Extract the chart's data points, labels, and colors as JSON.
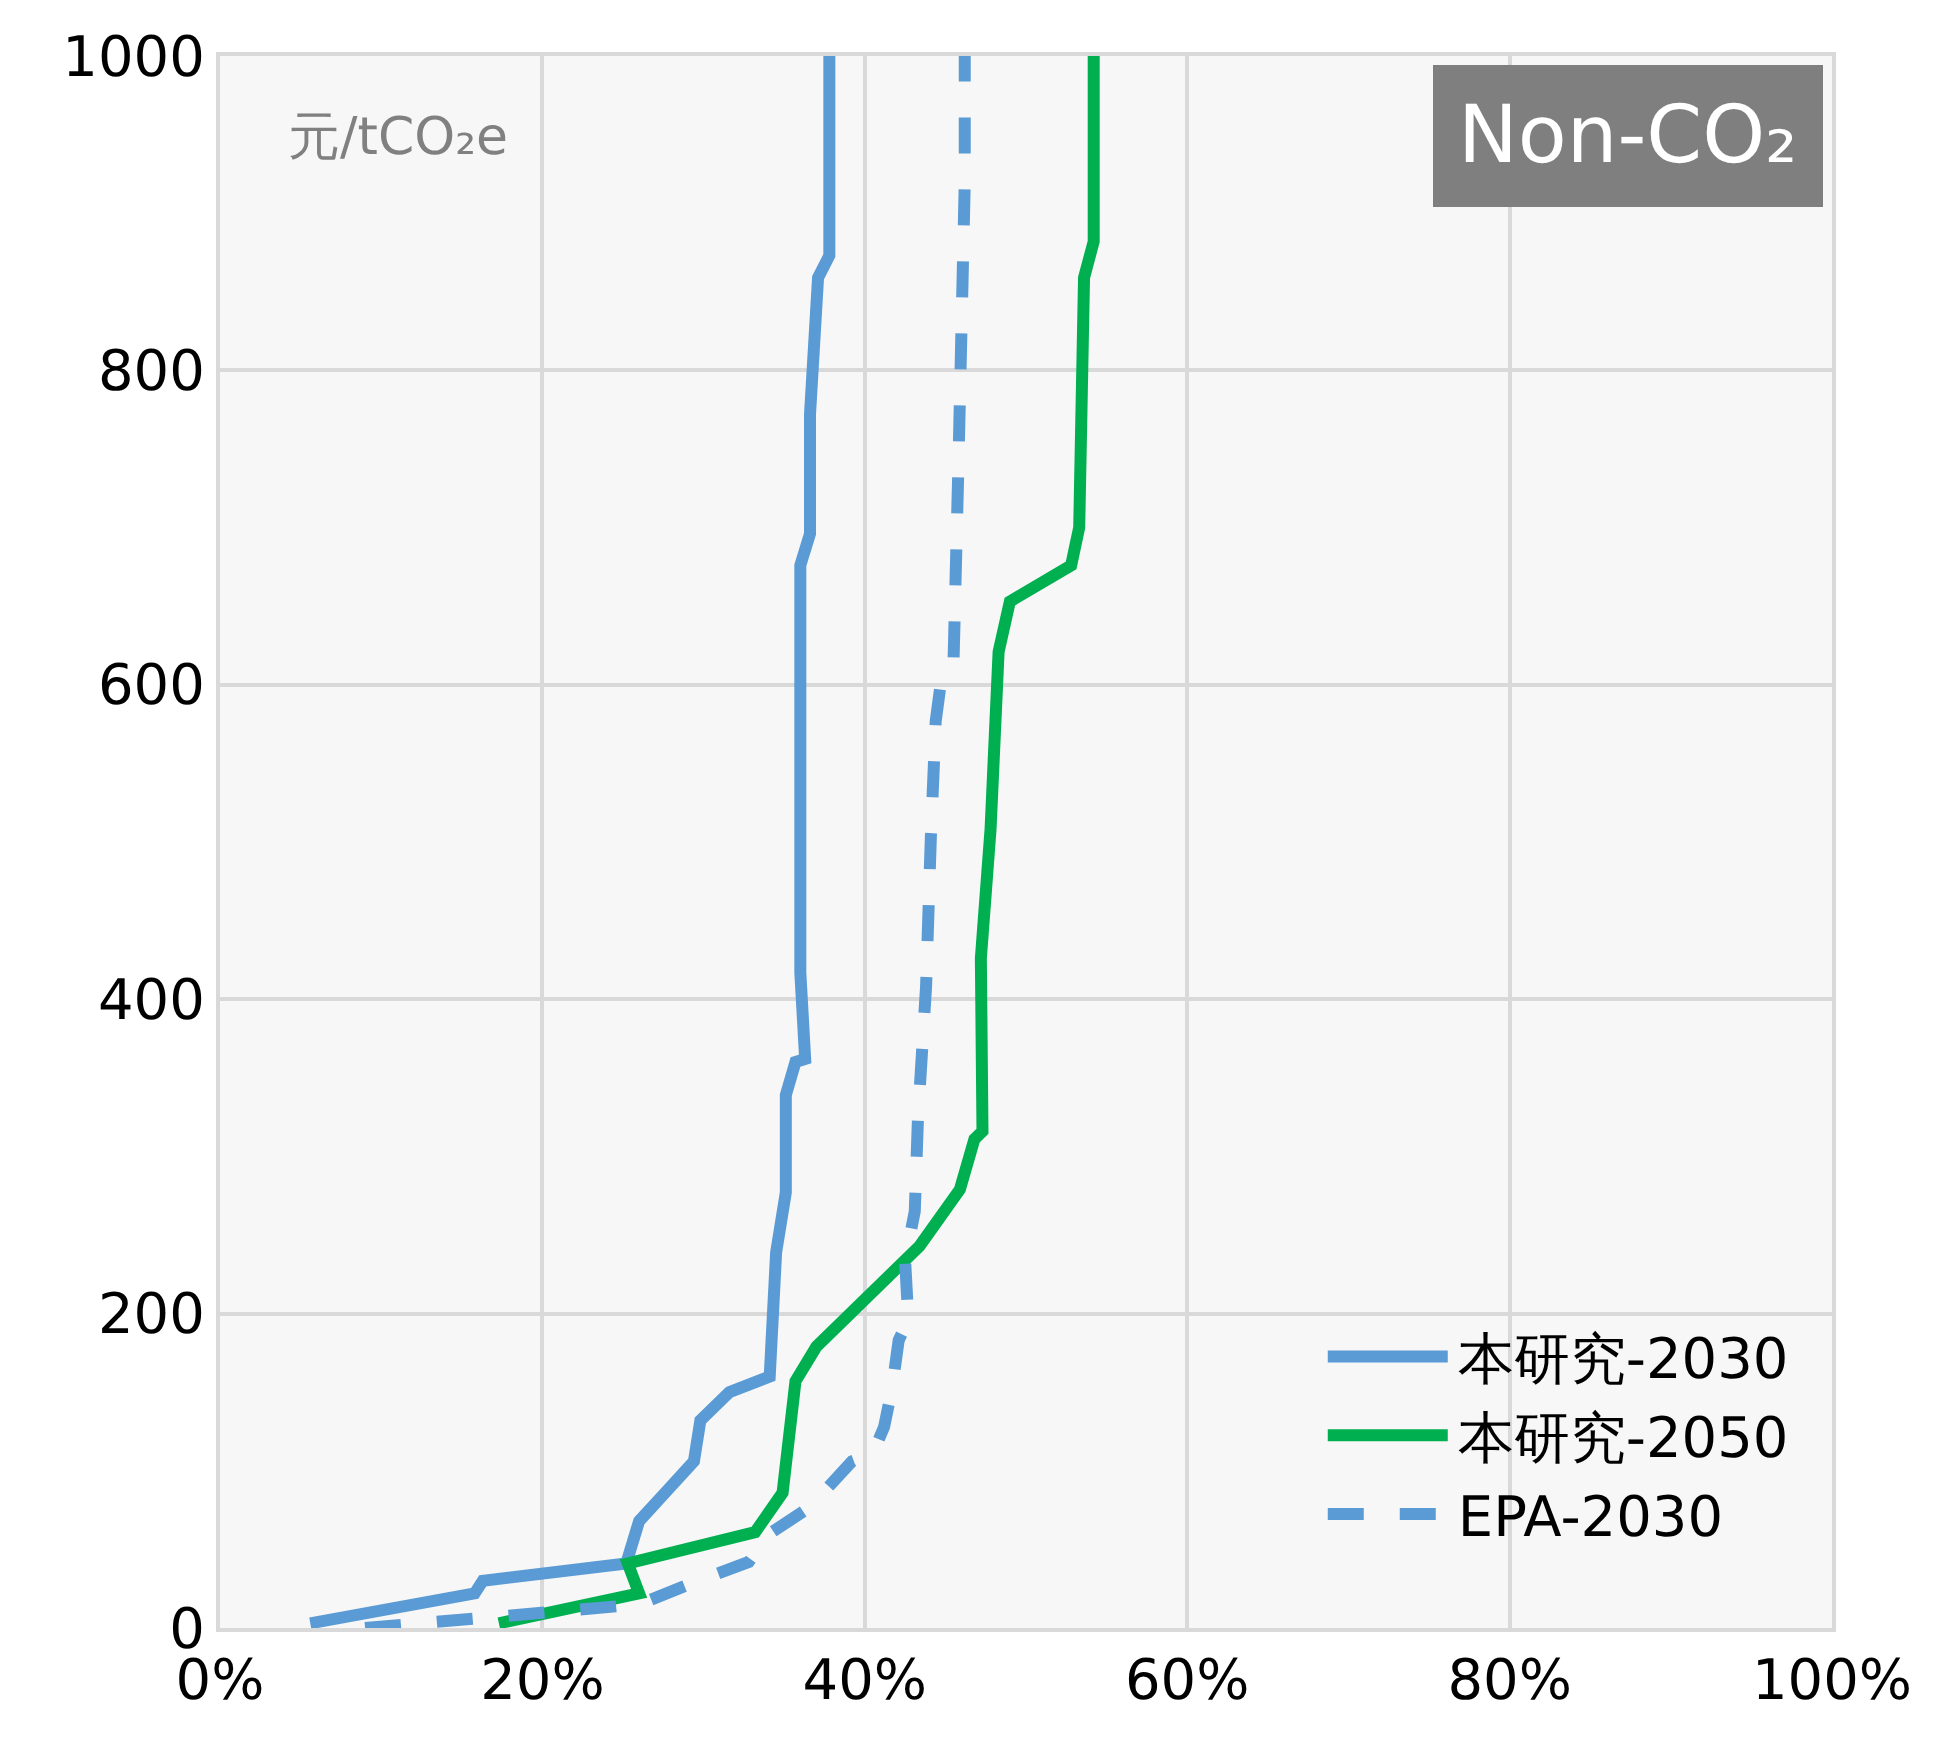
{
  "chart_data": {
    "type": "line",
    "annotations": [
      "元/tCO₂e",
      "Non-CO₂"
    ],
    "xlim": [
      0,
      100
    ],
    "xticks": [
      {
        "value": 0,
        "label": "0%"
      },
      {
        "value": 20,
        "label": "20%"
      },
      {
        "value": 40,
        "label": "40%"
      },
      {
        "value": 60,
        "label": "60%"
      },
      {
        "value": 80,
        "label": "80%"
      },
      {
        "value": 100,
        "label": "100%"
      }
    ],
    "ylim": [
      0,
      1000
    ],
    "yticks": [
      0,
      200,
      400,
      600,
      800,
      1000
    ],
    "grid": true,
    "legend": "bottom right",
    "marker": "none",
    "series": [
      {
        "name": "本研究-2030",
        "color": "#5b9bd5",
        "line_style": "solid",
        "x": [
          5.6,
          15.8,
          16.3,
          25.2,
          26,
          27.7,
          29.4,
          29.8,
          31.6,
          34.1,
          34.5,
          35.1,
          35.1,
          35.7,
          36.3,
          36,
          36,
          36.6,
          36.6,
          37.1,
          37.8,
          37.8
        ],
        "values": [
          3,
          22,
          30,
          41,
          68,
          87,
          106,
          132,
          150,
          160,
          239,
          277,
          339,
          360,
          362,
          417,
          676,
          696,
          772,
          859,
          873,
          1000
        ]
      },
      {
        "name": "本研究-2050",
        "color": "#00b050",
        "line_style": "solid",
        "x": [
          17.3,
          26,
          25.3,
          33.2,
          34.9,
          35.7,
          37,
          43.4,
          45.9,
          46.8,
          47.3,
          47.2,
          47.8,
          48.3,
          49,
          52.8,
          53.3,
          53.6,
          54.2,
          54.2
        ],
        "values": [
          3,
          22,
          41,
          61,
          86,
          157,
          179,
          243,
          279,
          311,
          316,
          426,
          508,
          621,
          653,
          676,
          700,
          859,
          882,
          1000
        ]
      },
      {
        "name": "EPA-2030",
        "color": "#5b9bd5",
        "line_style": "dashed",
        "x": [
          9,
          26,
          29.4,
          32.8,
          34.1,
          36.6,
          39.2,
          40.5,
          41.2,
          41.7,
          42.1,
          42.7,
          42.5,
          43.1,
          43.3,
          43.8,
          44.1,
          44.4,
          44.7,
          45.5,
          45.8,
          46.2,
          46.2
        ],
        "values": [
          0,
          15,
          29,
          42,
          60,
          77,
          106,
          111,
          128,
          153,
          183,
          196,
          234,
          265,
          325,
          408,
          504,
          577,
          600,
          613,
          737,
          919,
          1000
        ]
      }
    ]
  }
}
